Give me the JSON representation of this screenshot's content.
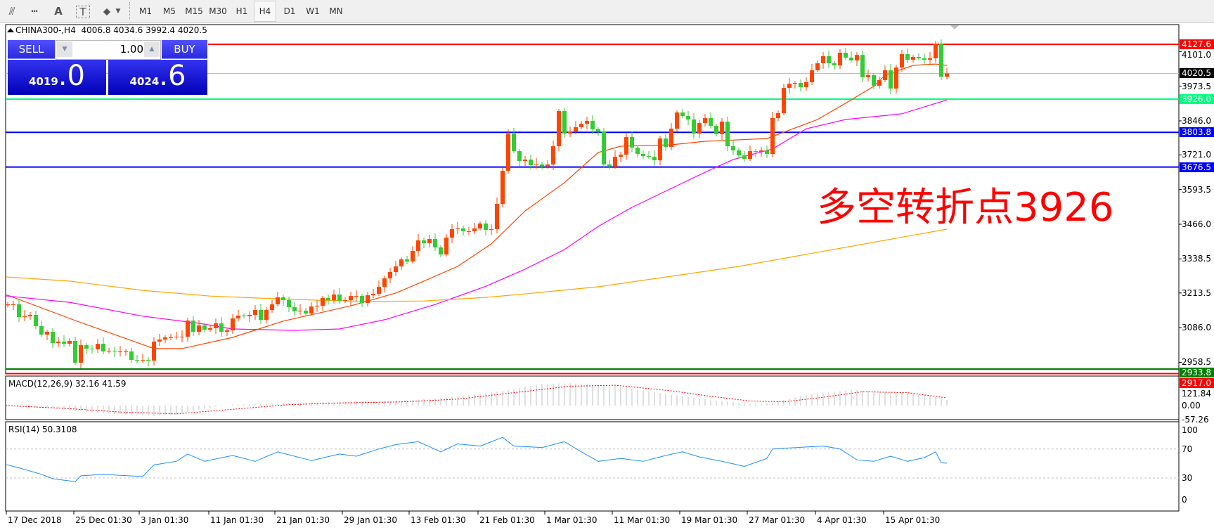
{
  "toolbar": {
    "icons": [
      "indicators-icon",
      "expert-icon",
      "text-icon",
      "text-label-icon",
      "arrows-icon"
    ],
    "icon_glyphs": {
      "indicators": "⫻",
      "expert": "┅",
      "text": "A",
      "label": "T",
      "arrows": "⬥"
    },
    "timeframes": [
      "M1",
      "M5",
      "M15",
      "M30",
      "H1",
      "H4",
      "D1",
      "W1",
      "MN"
    ],
    "active_timeframe": "H4"
  },
  "chart": {
    "header": "CHINA300-,H4  4006.8 4034.6 3992.4 4020.5",
    "symbol": "CHINA300-",
    "annotation": "多空转折点3926",
    "annotation_color": "#ff0000"
  },
  "trade_panel": {
    "sell_label": "SELL",
    "buy_label": "BUY",
    "lot": "1.00",
    "sell_price_main": "4019",
    "sell_price_frac": ".0",
    "buy_price_main": "4024",
    "buy_price_frac": ".6"
  },
  "price_axis": {
    "ticks": [
      "4101.0",
      "3973.5",
      "3846.0",
      "3721.0",
      "3593.5",
      "3466.0",
      "3338.5",
      "3213.5",
      "3086.0",
      "2958.5"
    ]
  },
  "levels": [
    {
      "price": "4127.6",
      "color": "#ff0000"
    },
    {
      "price": "4020.5",
      "color": "#000000",
      "line_color": "#c0c0c0"
    },
    {
      "price": "3926.0",
      "color": "#00ff7f"
    },
    {
      "price": "3803.8",
      "color": "#0000ff"
    },
    {
      "price": "3676.5",
      "color": "#0000ff"
    },
    {
      "price": "2933.8",
      "color": "#008000"
    },
    {
      "price": "2917.0",
      "color": "#ff0000"
    }
  ],
  "dates": [
    "17 Dec 2018",
    "25 Dec 01:30",
    "3 Jan 01:30",
    "11 Jan 01:30",
    "21 Jan 01:30",
    "29 Jan 01:30",
    "13 Feb 01:30",
    "21 Feb 01:30",
    "1 Mar 01:30",
    "11 Mar 01:30",
    "19 Mar 01:30",
    "27 Mar 01:30",
    "4 Apr 01:30",
    "15 Apr 01:30"
  ],
  "macd": {
    "label": "MACD(12,26,9) 32.16 41.59",
    "axis": [
      "121.84",
      "0.00",
      "-57.26"
    ]
  },
  "rsi": {
    "label": "RSI(14) 50.3108",
    "axis": [
      "100",
      "70",
      "30",
      "0"
    ]
  },
  "chart_data": {
    "type": "candlestick",
    "up_color": "#ff4500",
    "down_color": "#32cd32",
    "ylim": [
      2917.0,
      4127.6
    ],
    "first_open": 3168.0,
    "close": [
      3171.5,
      3171.5,
      3125,
      3127.6,
      3132.8,
      3091.4,
      3060.4,
      3070.7,
      3029.4,
      3034.6,
      3026.8,
      3037.2,
      2957,
      3021.6,
      3008.7,
      3006.1,
      3026.8,
      2998.4,
      3001,
      2998.4,
      2998.4,
      2998.4,
      2967.4,
      2964.8,
      2967.4,
      2964.8,
      3034.6,
      3042.4,
      3050.1,
      3050.1,
      3052.7,
      3052.7,
      3112.1,
      3070.7,
      3094,
      3078.5,
      3083.7,
      3101.7,
      3070.7,
      3075.9,
      3119.8,
      3130.2,
      3127.6,
      3132.8,
      3150.8,
      3114.6,
      3150.8,
      3171.5,
      3197.4,
      3187,
      3161.2,
      3145.7,
      3148.3,
      3137.9,
      3163.8,
      3166.4,
      3194.8,
      3187,
      3207.7,
      3184.4,
      3187,
      3202.5,
      3202.5,
      3176.7,
      3205.1,
      3210.3,
      3236.1,
      3267.1,
      3290.4,
      3311.1,
      3336.9,
      3329.1,
      3367.9,
      3406.7,
      3396.4,
      3411.9,
      3380.9,
      3355,
      3417,
      3448,
      3450.6,
      3440.3,
      3440.3,
      3450.6,
      3468.7,
      3445.4,
      3448,
      3541,
      3662.5,
      3799.4,
      3734.8,
      3698.6,
      3703.8,
      3683.2,
      3685.8,
      3678,
      3685.8,
      3752.9,
      3882.1,
      3799.4,
      3807.2,
      3822.7,
      3835.6,
      3846,
      3815,
      3807.2,
      3685.8,
      3678,
      3714.2,
      3721.9,
      3786.5,
      3747.8,
      3724.5,
      3716.8,
      3714.2,
      3701.2,
      3781.3,
      3750.3,
      3817.5,
      3877,
      3864,
      3851.1,
      3799.4,
      3838.2,
      3856.3,
      3827.9,
      3796.8,
      3843.4,
      3752.9,
      3737.4,
      3719.3,
      3706.4,
      3734.8,
      3732.2,
      3737.4,
      3724.5,
      3856.3,
      3874.4,
      3967.4,
      3982.9,
      3985.5,
      3970,
      3988.1,
      4032,
      4057.8,
      4083.7,
      4057.8,
      4050.1,
      4096.6,
      4078.5,
      4068.2,
      4088.4,
      4006.2,
      4013.9,
      3975.1,
      3995.8,
      4032,
      3964.8,
      4042.3,
      4091.4,
      4070.8,
      4081.1,
      4075.9,
      4070.8,
      4075.9,
      4130.2,
      4008.7,
      4020.5
    ],
    "moving_averages": [
      {
        "color": "#ff4500",
        "points": [
          [
            0,
            3205
          ],
          [
            12,
            3112
          ],
          [
            26,
            3009
          ],
          [
            31,
            3009
          ],
          [
            40,
            3050
          ],
          [
            49,
            3110
          ],
          [
            61,
            3166
          ],
          [
            69,
            3213
          ],
          [
            74,
            3257
          ],
          [
            80,
            3311
          ],
          [
            86,
            3394
          ],
          [
            92,
            3515
          ],
          [
            99,
            3619
          ],
          [
            105,
            3730
          ],
          [
            109,
            3753
          ],
          [
            118,
            3758
          ],
          [
            124,
            3771
          ],
          [
            135,
            3781
          ],
          [
            139,
            3812
          ],
          [
            144,
            3851
          ],
          [
            149,
            3911
          ],
          [
            154,
            3973
          ],
          [
            156,
            4014
          ],
          [
            161,
            4050
          ],
          [
            165,
            4055
          ],
          [
            167,
            4050
          ]
        ]
      },
      {
        "color": "#ff00ff",
        "points": [
          [
            0,
            3202
          ],
          [
            11,
            3179
          ],
          [
            24,
            3128
          ],
          [
            34,
            3102
          ],
          [
            40,
            3081
          ],
          [
            51,
            3076
          ],
          [
            59,
            3081
          ],
          [
            67,
            3115
          ],
          [
            76,
            3171
          ],
          [
            85,
            3238
          ],
          [
            92,
            3301
          ],
          [
            99,
            3373
          ],
          [
            105,
            3458
          ],
          [
            111,
            3528
          ],
          [
            118,
            3598
          ],
          [
            124,
            3657
          ],
          [
            129,
            3704
          ],
          [
            136,
            3743
          ],
          [
            142,
            3817
          ],
          [
            149,
            3851
          ],
          [
            159,
            3872
          ],
          [
            167,
            3923
          ]
        ]
      },
      {
        "color": "#ffa500",
        "points": [
          [
            0,
            3272
          ],
          [
            11,
            3257
          ],
          [
            24,
            3223
          ],
          [
            36,
            3202
          ],
          [
            44,
            3195
          ],
          [
            55,
            3187
          ],
          [
            64,
            3182
          ],
          [
            74,
            3184
          ],
          [
            85,
            3197
          ],
          [
            92,
            3210
          ],
          [
            105,
            3236
          ],
          [
            118,
            3275
          ],
          [
            130,
            3311
          ],
          [
            150,
            3385
          ],
          [
            167,
            3448
          ]
        ]
      }
    ],
    "macd_main": [
      [
        0,
        -5
      ],
      [
        8,
        -15
      ],
      [
        16,
        -40
      ],
      [
        26,
        -57
      ],
      [
        30,
        -50
      ],
      [
        34,
        -20
      ],
      [
        40,
        5
      ],
      [
        50,
        15
      ],
      [
        60,
        20
      ],
      [
        70,
        25
      ],
      [
        80,
        50
      ],
      [
        88,
        80
      ],
      [
        95,
        118
      ],
      [
        100,
        121
      ],
      [
        108,
        105
      ],
      [
        118,
        60
      ],
      [
        125,
        30
      ],
      [
        132,
        10
      ],
      [
        136,
        15
      ],
      [
        142,
        60
      ],
      [
        150,
        85
      ],
      [
        158,
        70
      ],
      [
        164,
        55
      ],
      [
        167,
        32.16
      ]
    ],
    "macd_signal": [
      [
        0,
        0
      ],
      [
        10,
        -15
      ],
      [
        20,
        -35
      ],
      [
        30,
        -45
      ],
      [
        40,
        -20
      ],
      [
        50,
        5
      ],
      [
        60,
        15
      ],
      [
        70,
        20
      ],
      [
        80,
        35
      ],
      [
        90,
        70
      ],
      [
        100,
        105
      ],
      [
        108,
        110
      ],
      [
        118,
        80
      ],
      [
        125,
        50
      ],
      [
        132,
        25
      ],
      [
        138,
        20
      ],
      [
        145,
        45
      ],
      [
        152,
        75
      ],
      [
        160,
        70
      ],
      [
        167,
        41.59
      ]
    ],
    "macd_range": [
      -57.26,
      121.84
    ],
    "rsi": [
      [
        0,
        48
      ],
      [
        2,
        44
      ],
      [
        6,
        35
      ],
      [
        8,
        29
      ],
      [
        12,
        25
      ],
      [
        13,
        33
      ],
      [
        17,
        35
      ],
      [
        24,
        32
      ],
      [
        26,
        48
      ],
      [
        30,
        53
      ],
      [
        32,
        63
      ],
      [
        35,
        53
      ],
      [
        40,
        61
      ],
      [
        44,
        53
      ],
      [
        48,
        66
      ],
      [
        54,
        54
      ],
      [
        59,
        63
      ],
      [
        62,
        60
      ],
      [
        66,
        70
      ],
      [
        69,
        76
      ],
      [
        73,
        80
      ],
      [
        77,
        66
      ],
      [
        80,
        77
      ],
      [
        84,
        74
      ],
      [
        88,
        86
      ],
      [
        90,
        74
      ],
      [
        95,
        72
      ],
      [
        99,
        80
      ],
      [
        102,
        66
      ],
      [
        105,
        53
      ],
      [
        109,
        57
      ],
      [
        113,
        53
      ],
      [
        117,
        61
      ],
      [
        120,
        66
      ],
      [
        123,
        59
      ],
      [
        127,
        53
      ],
      [
        131,
        46
      ],
      [
        135,
        57
      ],
      [
        136,
        70
      ],
      [
        145,
        74
      ],
      [
        148,
        70
      ],
      [
        151,
        55
      ],
      [
        154,
        53
      ],
      [
        157,
        60
      ],
      [
        160,
        53
      ],
      [
        163,
        58
      ],
      [
        165,
        66
      ],
      [
        166,
        51
      ],
      [
        167,
        50.3108
      ]
    ],
    "rsi_levels": [
      70,
      30
    ]
  }
}
